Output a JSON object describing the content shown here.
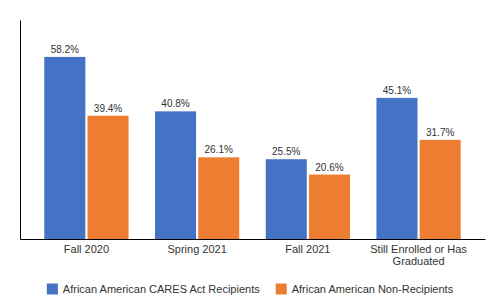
{
  "chart_data": {
    "type": "bar",
    "categories": [
      "Fall 2020",
      "Spring 2021",
      "Fall 2021",
      "Still Enrolled or Has\nGraduated"
    ],
    "series": [
      {
        "name": "African American CARES Act Recipients",
        "color": "#4472C4",
        "values": [
          58.2,
          40.8,
          25.5,
          45.1
        ],
        "value_labels": [
          "58.2%",
          "40.8%",
          "25.5%",
          "45.1%"
        ]
      },
      {
        "name": "African American Non-Recipients",
        "color": "#ED7D31",
        "values": [
          39.4,
          26.1,
          20.6,
          31.7
        ],
        "value_labels": [
          "39.4%",
          "26.1%",
          "20.6%",
          "31.7%"
        ]
      }
    ],
    "ylim": [
      0,
      70
    ],
    "grid": false,
    "legend": "bottom",
    "data_labels": true,
    "tick_labels": "x"
  }
}
